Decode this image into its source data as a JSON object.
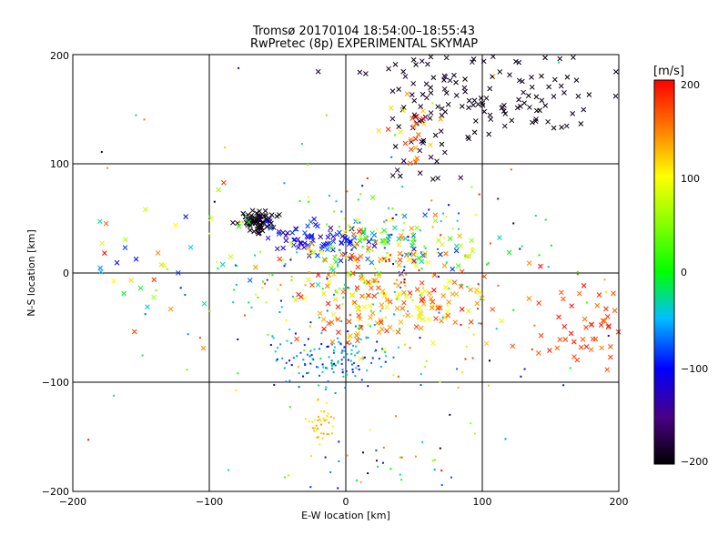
{
  "chart_data": {
    "type": "scatter",
    "title": "Tromsø 20170104 18:54:00–18:55:43",
    "subtitle": "RwPretec (8p) EXPERIMENTAL SKYMAP",
    "xlabel": "E-W location [km]",
    "ylabel": "N-S location [km]",
    "xlim": [
      -200,
      200
    ],
    "ylim": [
      -200,
      200
    ],
    "xticks": [
      "−200",
      "−100",
      "0",
      "100",
      "200"
    ],
    "yticks": [
      "−200",
      "−100",
      "0",
      "100",
      "200"
    ],
    "grid": true,
    "colorbar": {
      "label": "[m/s]",
      "range": [
        -200,
        200
      ],
      "ticks": [
        "200",
        "100",
        "0",
        "−100",
        "−200"
      ],
      "colormap": "black-purple-blue-cyan-green-yellow-red"
    },
    "markers": [
      "x",
      "dot"
    ],
    "clusters": [
      {
        "cx": 120,
        "cy": 160,
        "sx": 35,
        "sy": 20,
        "n": 90,
        "v": [
          -200,
          -185
        ],
        "m": "x"
      },
      {
        "cx": 60,
        "cy": 180,
        "sx": 25,
        "sy": 15,
        "n": 30,
        "v": [
          -200,
          -180
        ],
        "m": "x"
      },
      {
        "cx": 55,
        "cy": 120,
        "sx": 12,
        "sy": 25,
        "n": 35,
        "v": [
          -200,
          -170
        ],
        "m": "x"
      },
      {
        "cx": 50,
        "cy": 130,
        "sx": 10,
        "sy": 15,
        "n": 25,
        "v": [
          100,
          200
        ],
        "m": "x"
      },
      {
        "cx": -65,
        "cy": 48,
        "sx": 7,
        "sy": 5,
        "n": 70,
        "v": [
          -200,
          -185
        ],
        "m": "x"
      },
      {
        "cx": -20,
        "cy": 30,
        "sx": 20,
        "sy": 7,
        "n": 70,
        "v": [
          -140,
          -70
        ],
        "m": "x"
      },
      {
        "cx": 30,
        "cy": 25,
        "sx": 35,
        "sy": 15,
        "n": 110,
        "v": [
          -100,
          200
        ],
        "m": "x"
      },
      {
        "cx": 30,
        "cy": -25,
        "sx": 40,
        "sy": 20,
        "n": 160,
        "v": [
          80,
          200
        ],
        "m": "x"
      },
      {
        "cx": 20,
        "cy": 0,
        "sx": 55,
        "sy": 45,
        "n": 240,
        "v": [
          -120,
          200
        ],
        "m": "dot"
      },
      {
        "cx": -10,
        "cy": -80,
        "sx": 22,
        "sy": 12,
        "n": 120,
        "v": [
          -110,
          -20
        ],
        "m": "dot"
      },
      {
        "cx": -17,
        "cy": -137,
        "sx": 6,
        "sy": 8,
        "n": 40,
        "v": [
          90,
          140
        ],
        "m": "dot"
      },
      {
        "cx": -130,
        "cy": 0,
        "sx": 40,
        "sy": 40,
        "n": 40,
        "v": [
          -100,
          200
        ],
        "m": "x"
      },
      {
        "cx": 175,
        "cy": -45,
        "sx": 18,
        "sy": 20,
        "n": 50,
        "v": [
          150,
          200
        ],
        "m": "x"
      },
      {
        "cx": 20,
        "cy": -170,
        "sx": 25,
        "sy": 20,
        "n": 30,
        "v": [
          -200,
          200
        ],
        "m": "dot"
      },
      {
        "cx": 0,
        "cy": 0,
        "sx": 110,
        "sy": 110,
        "n": 140,
        "v": [
          -200,
          200
        ],
        "m": "dot"
      }
    ]
  }
}
